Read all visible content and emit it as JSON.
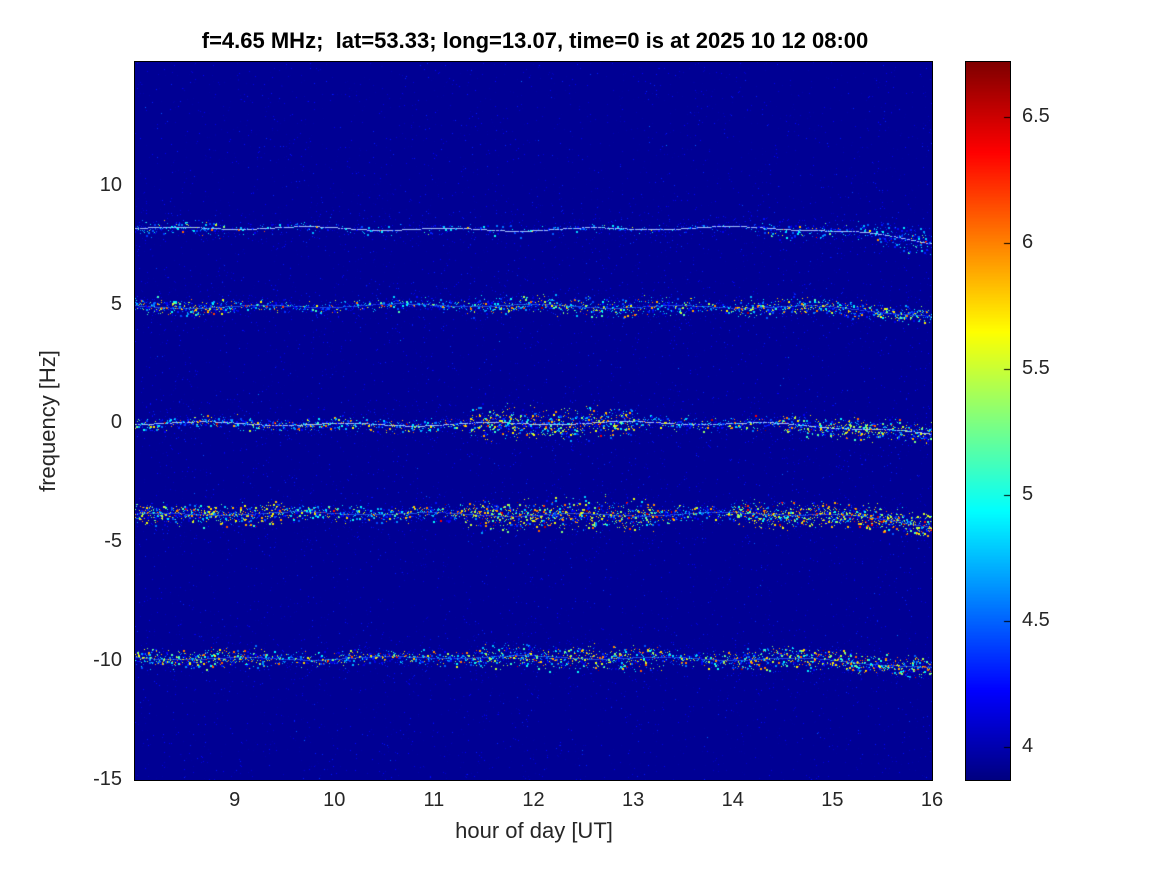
{
  "chart_data": {
    "type": "heatmap",
    "title": "f=4.65 MHz;  lat=53.33; long=13.07, time=0 is at 2025 10 12 08:00",
    "xlabel": "hour of day [UT]",
    "ylabel": "frequency [Hz]",
    "xlim": [
      8,
      16
    ],
    "ylim": [
      -15,
      15.2
    ],
    "x_ticks": [
      9,
      10,
      11,
      12,
      13,
      14,
      15,
      16
    ],
    "y_ticks": [
      -15,
      -10,
      -5,
      0,
      5,
      10
    ],
    "grid": false,
    "colormap": "jet",
    "background_color": "#000094",
    "colorbar": {
      "min": 3.87,
      "max": 6.72,
      "ticks": [
        4,
        4.5,
        5,
        5.5,
        6,
        6.5
      ],
      "position": "right"
    },
    "spectral_lines": [
      {
        "y_hz": 8.2,
        "end_drop_hz": 0.55,
        "sigma_hz": 0.1,
        "density": 0.55,
        "hot_fraction": 0.05,
        "red_fraction": 0.004,
        "thin_trace": true,
        "boosts": [
          [
            8.0,
            8.9,
            3,
            1.6
          ],
          [
            14.2,
            15.4,
            2.5,
            1.8
          ],
          [
            15.4,
            16,
            5,
            2.6
          ]
        ]
      },
      {
        "y_hz": 4.95,
        "end_drop_hz": 0.5,
        "sigma_hz": 0.13,
        "density": 1.6,
        "hot_fraction": 0.18,
        "red_fraction": 0.01,
        "thin_trace": false,
        "boosts": [
          [
            8.0,
            9.0,
            1.8,
            1.2
          ],
          [
            11.3,
            13.6,
            1.6,
            1.5
          ],
          [
            14.0,
            16,
            1.8,
            1.4
          ]
        ]
      },
      {
        "y_hz": 0.0,
        "end_drop_hz": 0.45,
        "sigma_hz": 0.14,
        "density": 2.0,
        "hot_fraction": 0.22,
        "red_fraction": 0.015,
        "thin_trace": true,
        "boosts": [
          [
            11.35,
            13.0,
            2.2,
            2.2
          ],
          [
            14.5,
            16,
            1.8,
            1.5
          ]
        ]
      },
      {
        "y_hz": -3.8,
        "end_drop_hz": 0.5,
        "sigma_hz": 0.16,
        "density": 2.6,
        "hot_fraction": 0.3,
        "red_fraction": 0.03,
        "thin_trace": false,
        "boosts": [
          [
            8.0,
            9.5,
            1.5,
            1.3
          ],
          [
            11.3,
            13.2,
            1.7,
            1.9
          ],
          [
            14.0,
            16,
            1.7,
            1.5
          ]
        ]
      },
      {
        "y_hz": -9.85,
        "end_drop_hz": 0.5,
        "sigma_hz": 0.15,
        "density": 2.2,
        "hot_fraction": 0.25,
        "red_fraction": 0.02,
        "thin_trace": false,
        "boosts": [
          [
            8.0,
            9.3,
            1.5,
            1.3
          ],
          [
            11.4,
            13.3,
            1.6,
            1.6
          ],
          [
            14.0,
            16,
            1.7,
            1.5
          ]
        ]
      }
    ]
  }
}
